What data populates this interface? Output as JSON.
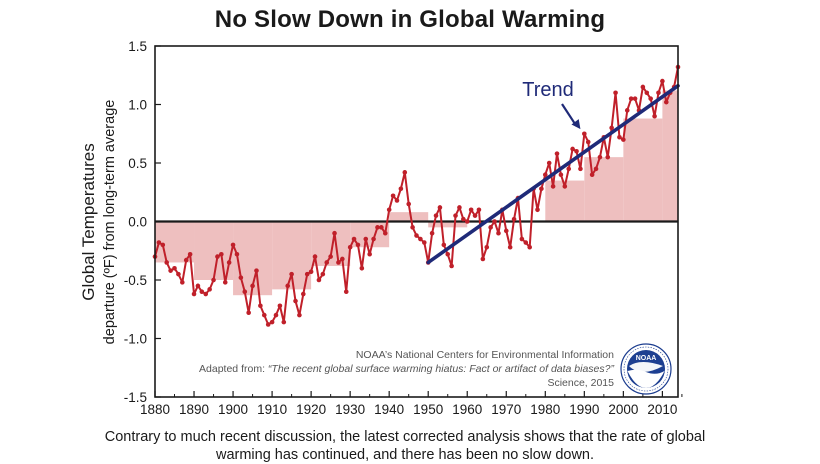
{
  "title": "No Slow Down in Global Warming",
  "caption": "Contrary to much recent discussion, the latest corrected analysis shows that the rate of global warming has continued, and there has been no slow down.",
  "credits": {
    "org": "NOAA’s National Centers for Environmental Information",
    "adapted_prefix": "Adapted from: ",
    "adapted_title": "“The recent global surface warming hiatus: Fact or artifact of data biases?”",
    "journal": "Science, 2015",
    "logo_text": "NOAA",
    "logo_ring_text": "NATIONAL OCEANIC AND ATMOSPHERIC ADMINISTRATION · U.S. DEPARTMENT OF COMMERCE"
  },
  "colors": {
    "line": "#c0202a",
    "bars": "#eebfbf",
    "trend": "#1f2a78",
    "axis": "#1a1a1a"
  },
  "chart_data": {
    "type": "line",
    "ylabel_line1": "Global Temperatures",
    "ylabel_line2": "departure (ºF) from long-term average",
    "xlim": [
      1880,
      2014
    ],
    "ylim": [
      -1.5,
      1.5
    ],
    "x_ticks": [
      "1880",
      "1890",
      "1900",
      "1910",
      "1920",
      "1930",
      "1940",
      "1950",
      "1960",
      "1970",
      "1980",
      "1990",
      "2000",
      "2010"
    ],
    "y_ticks": [
      "1.5",
      "1.0",
      "0.5",
      "0.0",
      "-0.5",
      "-1.0",
      "-1.5"
    ],
    "grid": false,
    "series": [
      {
        "type": "line",
        "x": [
          1880,
          1881,
          1882,
          1883,
          1884,
          1885,
          1886,
          1887,
          1888,
          1889,
          1890,
          1891,
          1892,
          1893,
          1894,
          1895,
          1896,
          1897,
          1898,
          1899,
          1900,
          1901,
          1902,
          1903,
          1904,
          1905,
          1906,
          1907,
          1908,
          1909,
          1910,
          1911,
          1912,
          1913,
          1914,
          1915,
          1916,
          1917,
          1918,
          1919,
          1920,
          1921,
          1922,
          1923,
          1924,
          1925,
          1926,
          1927,
          1928,
          1929,
          1930,
          1931,
          1932,
          1933,
          1934,
          1935,
          1936,
          1937,
          1938,
          1939,
          1940,
          1941,
          1942,
          1943,
          1944,
          1945,
          1946,
          1947,
          1948,
          1949,
          1950,
          1951,
          1952,
          1953,
          1954,
          1955,
          1956,
          1957,
          1958,
          1959,
          1960,
          1961,
          1962,
          1963,
          1964,
          1965,
          1966,
          1967,
          1968,
          1969,
          1970,
          1971,
          1972,
          1973,
          1974,
          1975,
          1976,
          1977,
          1978,
          1979,
          1980,
          1981,
          1982,
          1983,
          1984,
          1985,
          1986,
          1987,
          1988,
          1989,
          1990,
          1991,
          1992,
          1993,
          1994,
          1995,
          1996,
          1997,
          1998,
          1999,
          2000,
          2001,
          2002,
          2003,
          2004,
          2005,
          2006,
          2007,
          2008,
          2009,
          2010,
          2011,
          2012,
          2013,
          2014
        ],
        "y": [
          -0.3,
          -0.18,
          -0.2,
          -0.35,
          -0.42,
          -0.4,
          -0.45,
          -0.52,
          -0.33,
          -0.28,
          -0.62,
          -0.55,
          -0.6,
          -0.62,
          -0.58,
          -0.5,
          -0.3,
          -0.28,
          -0.52,
          -0.35,
          -0.2,
          -0.28,
          -0.48,
          -0.6,
          -0.78,
          -0.55,
          -0.42,
          -0.72,
          -0.8,
          -0.88,
          -0.86,
          -0.8,
          -0.72,
          -0.86,
          -0.55,
          -0.45,
          -0.68,
          -0.8,
          -0.62,
          -0.45,
          -0.43,
          -0.3,
          -0.5,
          -0.45,
          -0.35,
          -0.3,
          -0.1,
          -0.35,
          -0.32,
          -0.6,
          -0.22,
          -0.15,
          -0.2,
          -0.4,
          -0.15,
          -0.28,
          -0.15,
          -0.05,
          -0.05,
          -0.1,
          0.1,
          0.22,
          0.18,
          0.28,
          0.42,
          0.15,
          -0.05,
          -0.12,
          -0.15,
          -0.18,
          -0.35,
          -0.1,
          0.05,
          0.12,
          -0.2,
          -0.28,
          -0.38,
          0.05,
          0.12,
          0.02,
          0.0,
          0.1,
          0.05,
          0.1,
          -0.32,
          -0.22,
          -0.05,
          0.0,
          -0.1,
          0.1,
          -0.08,
          -0.22,
          0.02,
          0.2,
          -0.15,
          -0.18,
          -0.22,
          0.28,
          0.1,
          0.28,
          0.4,
          0.5,
          0.3,
          0.58,
          0.4,
          0.3,
          0.45,
          0.62,
          0.6,
          0.45,
          0.75,
          0.68,
          0.4,
          0.45,
          0.55,
          0.72,
          0.55,
          0.8,
          1.1,
          0.72,
          0.7,
          0.95,
          1.05,
          1.05,
          0.95,
          1.15,
          1.1,
          1.05,
          0.9,
          1.1,
          1.2,
          1.02,
          1.1,
          1.15,
          1.32
        ]
      },
      {
        "type": "bar",
        "name": "decade_averages",
        "x_start": [
          1880,
          1890,
          1900,
          1910,
          1920,
          1930,
          1940,
          1950,
          1960,
          1970,
          1980,
          1990,
          2000,
          2010
        ],
        "x_end": [
          1890,
          1900,
          1910,
          1920,
          1930,
          1940,
          1950,
          1960,
          1970,
          1980,
          1990,
          2000,
          2010,
          2014
        ],
        "values": [
          -0.35,
          -0.5,
          -0.63,
          -0.58,
          -0.38,
          -0.22,
          0.08,
          -0.05,
          0.0,
          0.0,
          0.35,
          0.55,
          0.88,
          1.12
        ]
      },
      {
        "type": "line",
        "name": "Trend",
        "x": [
          1950,
          2014
        ],
        "y": [
          -0.35,
          1.16
        ]
      }
    ],
    "annotations": [
      {
        "text": "Trend",
        "arrow_to": {
          "x": 1989,
          "y": 0.79
        }
      }
    ]
  }
}
